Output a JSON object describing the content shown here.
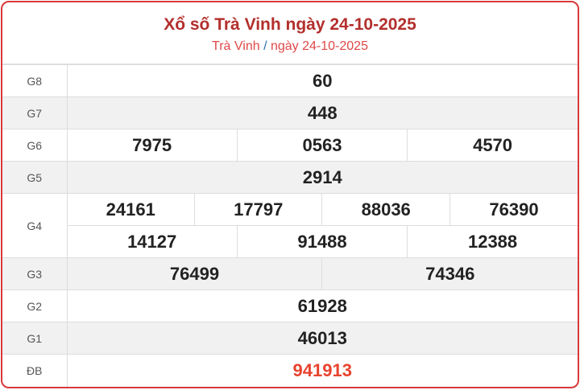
{
  "header": {
    "title": "Xổ số Trà Vinh ngày 24-10-2025",
    "breadcrumb_province": "Trà Vinh",
    "breadcrumb_separator": "/",
    "breadcrumb_date": "ngày 24-10-2025"
  },
  "prizes": {
    "g8": {
      "label": "G8",
      "numbers": [
        "60"
      ]
    },
    "g7": {
      "label": "G7",
      "numbers": [
        "448"
      ]
    },
    "g6": {
      "label": "G6",
      "numbers": [
        "7975",
        "0563",
        "4570"
      ]
    },
    "g5": {
      "label": "G5",
      "numbers": [
        "2914"
      ]
    },
    "g4": {
      "label": "G4",
      "numbers": [
        "24161",
        "17797",
        "88036",
        "76390",
        "14127",
        "91488",
        "12388"
      ]
    },
    "g3": {
      "label": "G3",
      "numbers": [
        "76499",
        "74346"
      ]
    },
    "g2": {
      "label": "G2",
      "numbers": [
        "61928"
      ]
    },
    "g1": {
      "label": "G1",
      "numbers": [
        "46013"
      ]
    },
    "db": {
      "label": "ĐB",
      "numbers": [
        "941913"
      ]
    }
  },
  "colors": {
    "border": "#d9393a",
    "title": "#b22f2c",
    "special_prize": "#e8432e"
  }
}
